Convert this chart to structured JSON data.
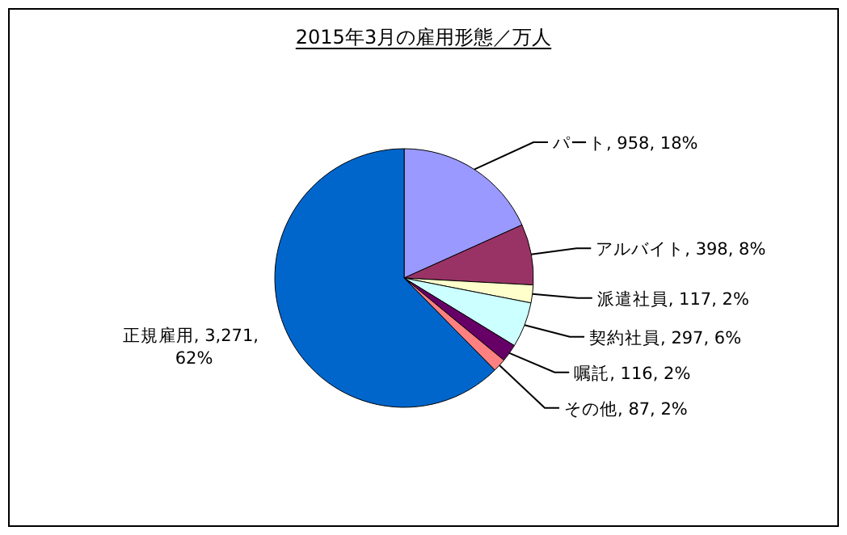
{
  "chart_data": {
    "type": "pie",
    "title": "2015年3月の雇用形態／万人",
    "categories": [
      "パート",
      "アルバイト",
      "派遣社員",
      "契約社員",
      "嘱託",
      "その他",
      "正規雇用"
    ],
    "values": [
      958,
      398,
      117,
      297,
      116,
      87,
      3271
    ],
    "value_labels": [
      "958, 18%",
      "398, 8%",
      "117, 2%",
      "297, 6%",
      "116, 2%",
      "87, 2%",
      "3,271, 62%"
    ],
    "colors": [
      "#9999ff",
      "#993366",
      "#ffffcc",
      "#ccffff",
      "#660066",
      "#ff8080",
      "#0066cc"
    ]
  }
}
